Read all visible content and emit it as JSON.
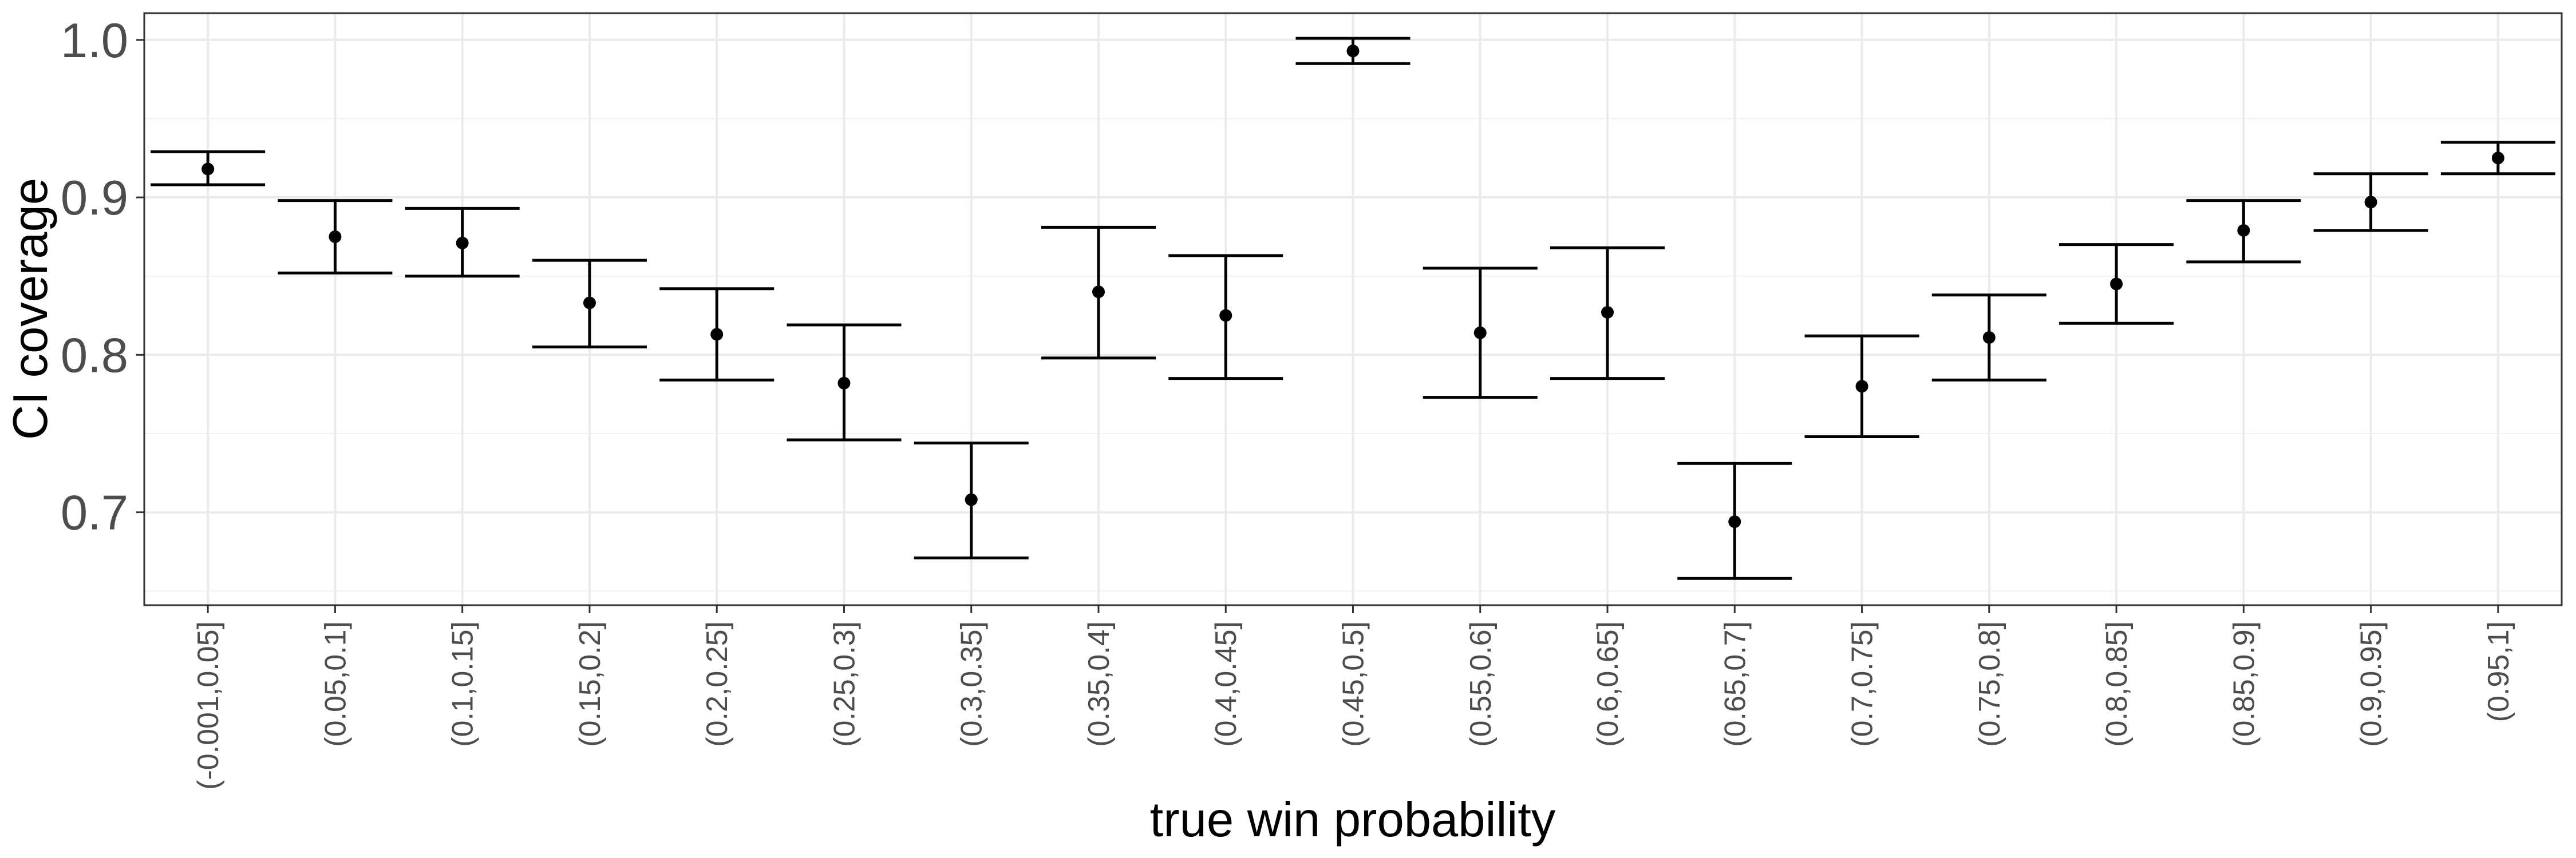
{
  "chart_data": {
    "type": "scatter",
    "subtype": "point with error bars",
    "xlabel": "true win probability",
    "ylabel": "CI coverage",
    "ylim": [
      0.641,
      1.017
    ],
    "yticks": [
      0.7,
      0.8,
      0.9,
      1.0
    ],
    "ytick_labels": [
      "0.7",
      "0.8",
      "0.9",
      "1.0"
    ],
    "grid": true,
    "categories": [
      "(-0.001,0.05]",
      "(0.05,0.1]",
      "(0.1,0.15]",
      "(0.15,0.2]",
      "(0.2,0.25]",
      "(0.25,0.3]",
      "(0.3,0.35]",
      "(0.35,0.4]",
      "(0.4,0.45]",
      "(0.45,0.5]",
      "(0.55,0.6]",
      "(0.6,0.65]",
      "(0.65,0.7]",
      "(0.7,0.75]",
      "(0.75,0.8]",
      "(0.8,0.85]",
      "(0.85,0.9]",
      "(0.9,0.95]",
      "(0.95,1]"
    ],
    "values": [
      0.918,
      0.875,
      0.871,
      0.833,
      0.813,
      0.782,
      0.708,
      0.84,
      0.825,
      0.993,
      0.814,
      0.827,
      0.694,
      0.78,
      0.811,
      0.845,
      0.879,
      0.897,
      0.925
    ],
    "lower": [
      0.908,
      0.852,
      0.85,
      0.805,
      0.784,
      0.746,
      0.671,
      0.798,
      0.785,
      0.985,
      0.773,
      0.785,
      0.658,
      0.748,
      0.784,
      0.82,
      0.859,
      0.879,
      0.915
    ],
    "upper": [
      0.929,
      0.898,
      0.893,
      0.86,
      0.842,
      0.819,
      0.744,
      0.881,
      0.863,
      1.001,
      0.855,
      0.868,
      0.731,
      0.812,
      0.838,
      0.87,
      0.898,
      0.915,
      0.935
    ]
  }
}
